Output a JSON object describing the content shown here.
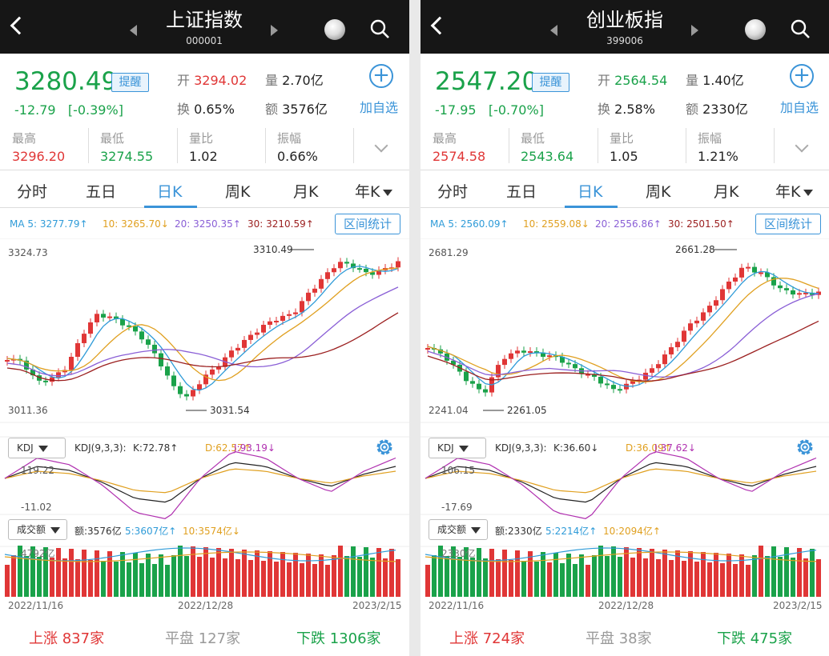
{
  "panels": [
    {
      "title": "上证指数",
      "code": "000001",
      "price": "3280.49",
      "change": "-12.79",
      "change_pct": "[-0.39%]",
      "remind": "提醒",
      "open_label": "开",
      "open": "3294.02",
      "vol_label": "量",
      "vol": "2.70亿",
      "turnover_label": "换",
      "turnover": "0.65%",
      "amount_label": "额",
      "amount": "3576亿",
      "add_label": "加自选",
      "high_label": "最高",
      "high": "3296.20",
      "low_label": "最低",
      "low": "3274.55",
      "ratio_label": "量比",
      "ratio": "1.02",
      "amp_label": "振幅",
      "amp": "0.66%",
      "tabs": [
        "分时",
        "五日",
        "日K",
        "周K",
        "月K",
        "年K"
      ],
      "ma": [
        "MA 5: 3277.79↑",
        "10: 3265.70↓",
        "20: 3250.35↑",
        "30: 3210.59↑"
      ],
      "range_btn": "区间统计",
      "y_top": "3324.73",
      "y_bottom": "3011.36",
      "max_label": "3310.49",
      "min_label": "3031.54",
      "kdj_btn": "KDJ",
      "kdj_params": "KDJ(9,3,3):",
      "kdj_k": "K:72.78↑",
      "kdj_d": "D:62.57↑",
      "kdj_j": "J:93.19↓",
      "kdj_top": "119.22",
      "kdj_bottom": "-11.02",
      "vol_btn": "成交额",
      "vol_amt": "额:3576亿",
      "vol_5": "5:3607亿↑",
      "vol_10": "10:3574亿↓",
      "vol_max": "4792亿",
      "dates": [
        "2022/11/16",
        "2022/12/28",
        "2023/2/15"
      ],
      "rise_label": "上涨",
      "rise": "837家",
      "flat_label": "平盘",
      "flat": "127家",
      "fall_label": "下跌",
      "fall": "1306家"
    },
    {
      "title": "创业板指",
      "code": "399006",
      "price": "2547.20",
      "change": "-17.95",
      "change_pct": "[-0.70%]",
      "remind": "提醒",
      "open_label": "开",
      "open": "2564.54",
      "vol_label": "量",
      "vol": "1.40亿",
      "turnover_label": "换",
      "turnover": "2.58%",
      "amount_label": "额",
      "amount": "2330亿",
      "add_label": "加自选",
      "high_label": "最高",
      "high": "2574.58",
      "low_label": "最低",
      "low": "2543.64",
      "ratio_label": "量比",
      "ratio": "1.05",
      "amp_label": "振幅",
      "amp": "1.21%",
      "tabs": [
        "分时",
        "五日",
        "日K",
        "周K",
        "月K",
        "年K"
      ],
      "ma": [
        "MA 5: 2560.09↑",
        "10: 2559.08↓",
        "20: 2556.86↑",
        "30: 2501.50↑"
      ],
      "range_btn": "区间统计",
      "y_top": "2681.29",
      "y_bottom": "2241.04",
      "max_label": "2661.28",
      "min_label": "2261.05",
      "kdj_btn": "KDJ",
      "kdj_params": "KDJ(9,3,3):",
      "kdj_k": "K:36.60↓",
      "kdj_d": "D:36.09↑",
      "kdj_j": "J:37.62↓",
      "kdj_top": "106.15",
      "kdj_bottom": "-17.69",
      "vol_btn": "成交额",
      "vol_amt": "额:2330亿",
      "vol_5": "5:2214亿↑",
      "vol_10": "10:2094亿↑",
      "vol_max": "2330亿",
      "dates": [
        "2022/11/16",
        "2022/12/28",
        "2023/2/15"
      ],
      "rise_label": "上涨",
      "rise": "724家",
      "flat_label": "平盘",
      "flat": "38家",
      "fall_label": "下跌",
      "fall": "475家"
    }
  ],
  "colors": {
    "up": "#e03636",
    "down": "#1aa24a",
    "accent": "#3b94d8",
    "ma5": "#2f9bd8",
    "ma10": "#e0a020",
    "ma20": "#8a5fd6",
    "ma30": "#9b1f1f"
  },
  "icons": [
    "back-icon",
    "prev-arrow-icon",
    "next-arrow-icon",
    "soccer-ball-icon",
    "search-icon",
    "plus-icon",
    "chevron-down-icon",
    "gear-icon"
  ]
}
